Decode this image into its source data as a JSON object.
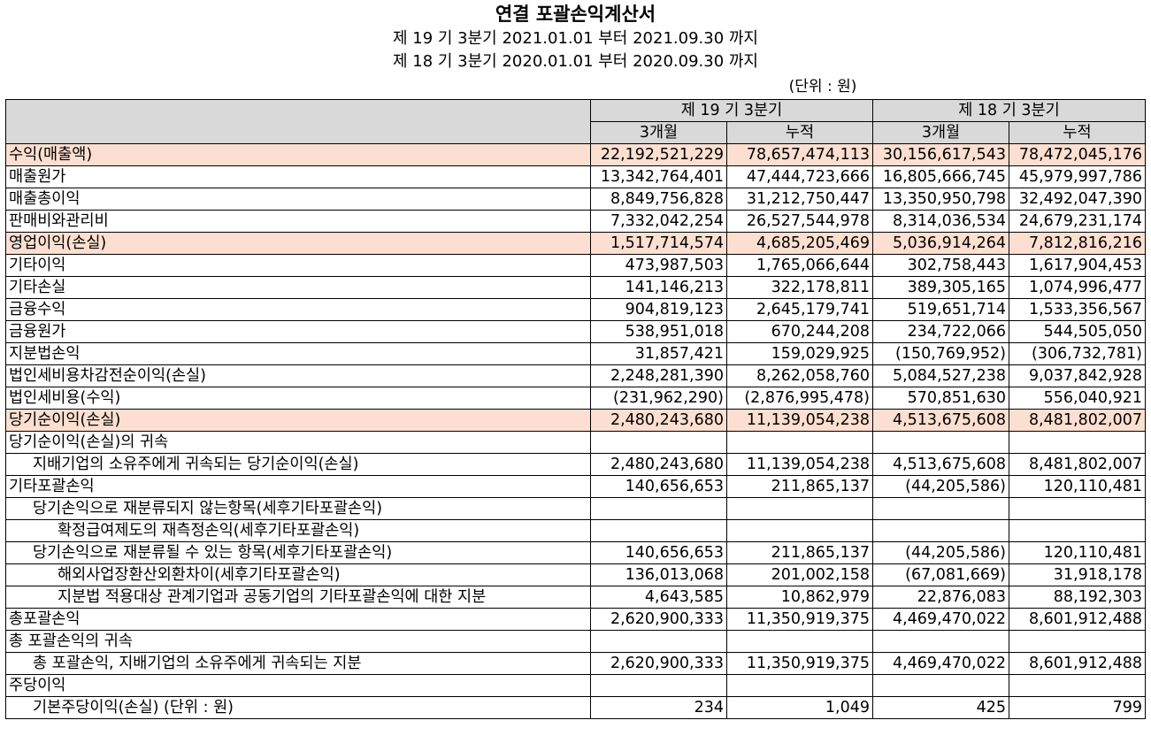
{
  "title": "연결 포괄손익계산서",
  "period_current": "제 19 기 3분기 2021.01.01 부터 2021.09.30 까지",
  "period_prior": "제 18 기 3분기 2020.01.01 부터 2020.09.30 까지",
  "unit": "(단위 : 원)",
  "header": {
    "current_period": "제 19 기 3분기",
    "prior_period": "제 18 기 3분기",
    "col_3m_current": "3개월",
    "col_cum_current": "누적",
    "col_3m_prior": "3개월",
    "col_cum_prior": "누적"
  },
  "rows": [
    {
      "label": "수익(매출액)",
      "indent": 0,
      "hl": true,
      "v": [
        "22,192,521,229",
        "78,657,474,113",
        "30,156,617,543",
        "78,472,045,176"
      ]
    },
    {
      "label": "매출원가",
      "indent": 0,
      "hl": false,
      "v": [
        "13,342,764,401",
        "47,444,723,666",
        "16,805,666,745",
        "45,979,997,786"
      ]
    },
    {
      "label": "매출총이익",
      "indent": 0,
      "hl": false,
      "v": [
        "8,849,756,828",
        "31,212,750,447",
        "13,350,950,798",
        "32,492,047,390"
      ]
    },
    {
      "label": "판매비와관리비",
      "indent": 0,
      "hl": false,
      "v": [
        "7,332,042,254",
        "26,527,544,978",
        "8,314,036,534",
        "24,679,231,174"
      ]
    },
    {
      "label": "영업이익(손실)",
      "indent": 0,
      "hl": true,
      "v": [
        "1,517,714,574",
        "4,685,205,469",
        "5,036,914,264",
        "7,812,816,216"
      ]
    },
    {
      "label": "기타이익",
      "indent": 0,
      "hl": false,
      "v": [
        "473,987,503",
        "1,765,066,644",
        "302,758,443",
        "1,617,904,453"
      ]
    },
    {
      "label": "기타손실",
      "indent": 0,
      "hl": false,
      "v": [
        "141,146,213",
        "322,178,811",
        "389,305,165",
        "1,074,996,477"
      ]
    },
    {
      "label": "금융수익",
      "indent": 0,
      "hl": false,
      "v": [
        "904,819,123",
        "2,645,179,741",
        "519,651,714",
        "1,533,356,567"
      ]
    },
    {
      "label": "금융원가",
      "indent": 0,
      "hl": false,
      "v": [
        "538,951,018",
        "670,244,208",
        "234,722,066",
        "544,505,050"
      ]
    },
    {
      "label": "지분법손익",
      "indent": 0,
      "hl": false,
      "v": [
        "31,857,421",
        "159,029,925",
        "(150,769,952)",
        "(306,732,781)"
      ]
    },
    {
      "label": "법인세비용차감전순이익(손실)",
      "indent": 0,
      "hl": false,
      "v": [
        "2,248,281,390",
        "8,262,058,760",
        "5,084,527,238",
        "9,037,842,928"
      ]
    },
    {
      "label": "법인세비용(수익)",
      "indent": 0,
      "hl": false,
      "v": [
        "(231,962,290)",
        "(2,876,995,478)",
        "570,851,630",
        "556,040,921"
      ]
    },
    {
      "label": "당기순이익(손실)",
      "indent": 0,
      "hl": true,
      "v": [
        "2,480,243,680",
        "11,139,054,238",
        "4,513,675,608",
        "8,481,802,007"
      ]
    },
    {
      "label": "당기순이익(손실)의 귀속",
      "indent": 0,
      "hl": false,
      "v": [
        "",
        "",
        "",
        ""
      ]
    },
    {
      "label": "지배기업의 소유주에게 귀속되는 당기순이익(손실)",
      "indent": 1,
      "hl": false,
      "v": [
        "2,480,243,680",
        "11,139,054,238",
        "4,513,675,608",
        "8,481,802,007"
      ]
    },
    {
      "label": "기타포괄손익",
      "indent": 0,
      "hl": false,
      "v": [
        "140,656,653",
        "211,865,137",
        "(44,205,586)",
        "120,110,481"
      ]
    },
    {
      "label": "당기손익으로 재분류되지 않는항목(세후기타포괄손익)",
      "indent": 1,
      "hl": false,
      "v": [
        "",
        "",
        "",
        ""
      ]
    },
    {
      "label": "확정급여제도의 재측정손익(세후기타포괄손익)",
      "indent": 2,
      "hl": false,
      "v": [
        "",
        "",
        "",
        ""
      ]
    },
    {
      "label": "당기손익으로 재분류될 수 있는 항목(세후기타포괄손익)",
      "indent": 1,
      "hl": false,
      "v": [
        "140,656,653",
        "211,865,137",
        "(44,205,586)",
        "120,110,481"
      ]
    },
    {
      "label": "해외사업장환산외환차이(세후기타포괄손익)",
      "indent": 2,
      "hl": false,
      "v": [
        "136,013,068",
        "201,002,158",
        "(67,081,669)",
        "31,918,178"
      ]
    },
    {
      "label": "지분법 적용대상 관계기업과 공동기업의 기타포괄손익에 대한 지분",
      "indent": 2,
      "hl": false,
      "v": [
        "4,643,585",
        "10,862,979",
        "22,876,083",
        "88,192,303"
      ]
    },
    {
      "label": "총포괄손익",
      "indent": 0,
      "hl": false,
      "v": [
        "2,620,900,333",
        "11,350,919,375",
        "4,469,470,022",
        "8,601,912,488"
      ]
    },
    {
      "label": "총 포괄손익의 귀속",
      "indent": 0,
      "hl": false,
      "v": [
        "",
        "",
        "",
        ""
      ]
    },
    {
      "label": "총 포괄손익, 지배기업의 소유주에게 귀속되는 지분",
      "indent": 1,
      "hl": false,
      "v": [
        "2,620,900,333",
        "11,350,919,375",
        "4,469,470,022",
        "8,601,912,488"
      ]
    },
    {
      "label": "주당이익",
      "indent": 0,
      "hl": false,
      "v": [
        "",
        "",
        "",
        ""
      ]
    },
    {
      "label": "기본주당이익(손실) (단위 : 원)",
      "indent": 1,
      "hl": false,
      "v": [
        "234",
        "1,049",
        "425",
        "799"
      ]
    }
  ]
}
